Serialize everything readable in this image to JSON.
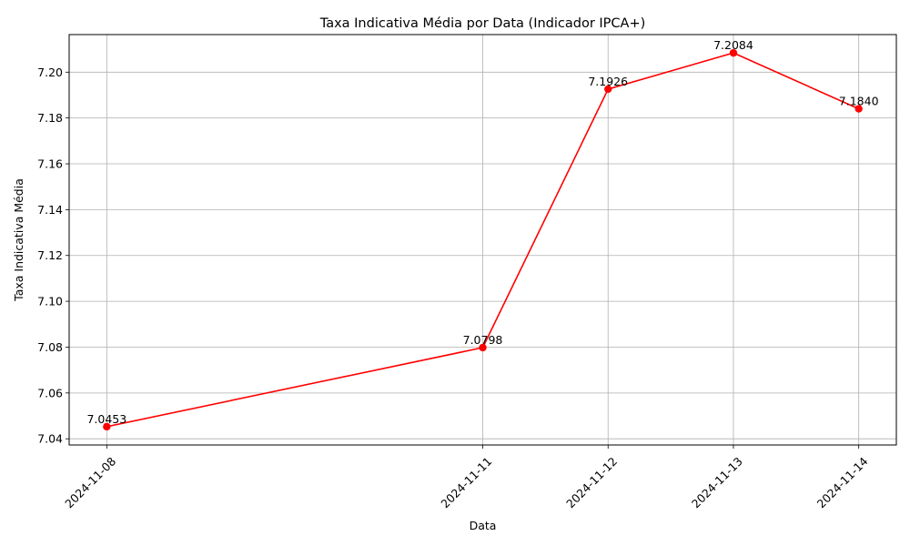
{
  "chart_data": {
    "type": "line",
    "title": "Taxa Indicativa Média por Data (Indicador IPCA+)",
    "xlabel": "Data",
    "ylabel": "Taxa Indicativa Média",
    "x": [
      "2024-11-08",
      "2024-11-11",
      "2024-11-12",
      "2024-11-13",
      "2024-11-14"
    ],
    "series": [
      {
        "values": [
          7.0453,
          7.0798,
          7.1926,
          7.2084,
          7.184
        ],
        "data_labels": [
          "7.0453",
          "7.0798",
          "7.1926",
          "7.2084",
          "7.1840"
        ],
        "color": "#ff0000",
        "marker": "circle"
      }
    ],
    "ylim": [
      7.0373,
      7.2164
    ],
    "yticks": [
      "7.04",
      "7.06",
      "7.08",
      "7.10",
      "7.12",
      "7.14",
      "7.16",
      "7.18",
      "7.20"
    ],
    "xtick_rotation": "45°",
    "grid": true,
    "gridline_color": "#b0b0b0",
    "legend": "none"
  }
}
